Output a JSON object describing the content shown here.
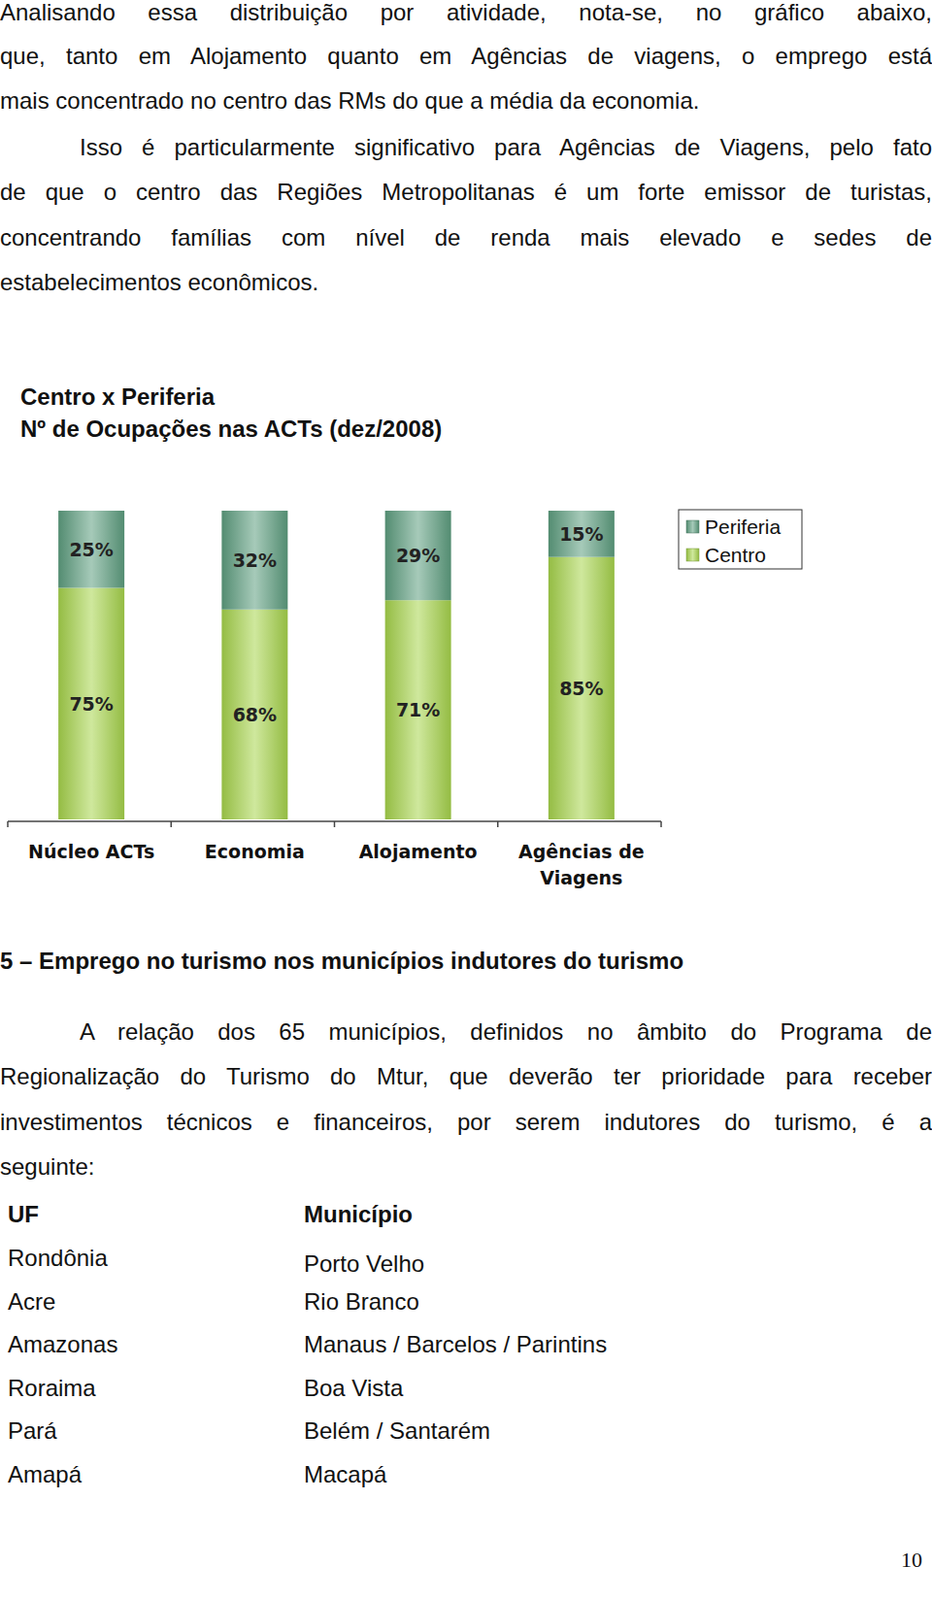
{
  "paragraphs": [
    {
      "indent": false,
      "lines": [
        "Analisando essa distribuição por atividade, nota-se, no gráfico abaixo,",
        "que, tanto em Alojamento quanto em Agências de viagens, o emprego está",
        "mais concentrado no centro das RMs do que a média da economia."
      ]
    },
    {
      "indent": true,
      "lines": [
        "Isso é particularmente significativo para Agências de Viagens, pelo fato",
        "de que o centro das Regiões Metropolitanas é um forte emissor de turistas,",
        "concentrando famílias com nível de renda mais elevado e sedes de",
        "estabelecimentos econômicos."
      ]
    }
  ],
  "chart_data": {
    "type": "bar",
    "title": "Centro x Periferia",
    "subtitle": "Nº de Ocupações nas ACTs (dez/2008)",
    "categories": [
      "Núcleo ACTs",
      "Economia",
      "Alojamento",
      "Agências de Viagens"
    ],
    "series": [
      {
        "name": "Periferia",
        "color": "#5e9f80",
        "values": [
          25,
          32,
          29,
          15
        ],
        "value_labels": [
          "25%",
          "32%",
          "29%",
          "15%"
        ]
      },
      {
        "name": "Centro",
        "color": "#a8d64c",
        "values": [
          75,
          68,
          71,
          85
        ],
        "value_labels": [
          "75%",
          "68%",
          "71%",
          "85%"
        ]
      }
    ],
    "ylim": [
      0,
      100
    ],
    "stacked": true,
    "data_labels": true,
    "tick_labels": "x",
    "legend": "top-right",
    "grid": false
  },
  "section_title": "5 – Emprego no turismo nos municípios indutores do turismo",
  "section_text": {
    "indent": true,
    "lines": [
      "A relação dos 65 municípios, definidos no âmbito do Programa de",
      "Regionalização do Turismo do Mtur, que deverão ter prioridade para receber",
      "investimentos técnicos e financeiros, por serem indutores do turismo, é a",
      "seguinte:"
    ]
  },
  "table": {
    "header": [
      "UF",
      "Município"
    ],
    "rows": [
      [
        "Rondônia",
        "Porto Velho"
      ],
      [
        "Acre",
        "Rio Branco"
      ],
      [
        "Amazonas",
        "Manaus / Barcelos / Parintins"
      ],
      [
        "Roraima",
        "Boa Vista"
      ],
      [
        "Pará",
        "Belém / Santarém"
      ],
      [
        "Amapá",
        "Macapá"
      ]
    ]
  },
  "page_number": "10"
}
